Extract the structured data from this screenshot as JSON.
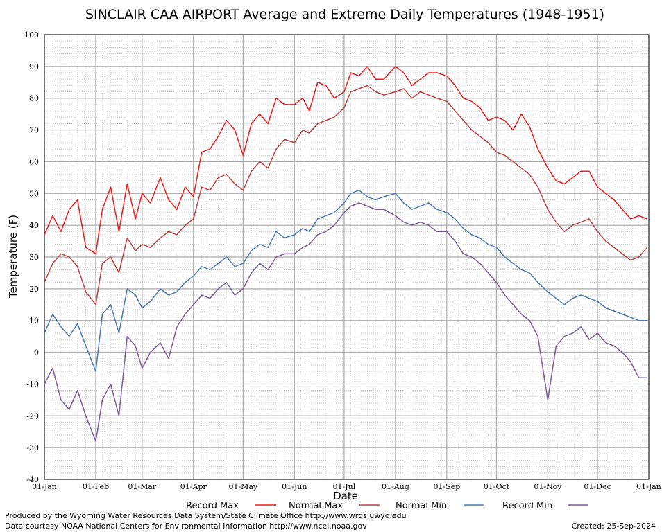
{
  "chart_data": {
    "type": "line",
    "title": "SINCLAIR CAA AIRPORT Average and Extreme Daily Temperatures (1948-1951)",
    "xlabel": "Date",
    "ylabel": "Temperature (F)",
    "ylim": [
      -40,
      100
    ],
    "yticks": [
      100,
      90,
      80,
      70,
      60,
      50,
      40,
      30,
      20,
      10,
      0,
      -10,
      -20,
      -30,
      -40
    ],
    "xlim": [
      0,
      365
    ],
    "x_ticks": [
      {
        "day": 0,
        "label": "01-Jan"
      },
      {
        "day": 31,
        "label": "01-Feb"
      },
      {
        "day": 59,
        "label": "01-Mar"
      },
      {
        "day": 90,
        "label": "01-Apr"
      },
      {
        "day": 120,
        "label": "01-May"
      },
      {
        "day": 151,
        "label": "01-Jun"
      },
      {
        "day": 181,
        "label": "01-Jul"
      },
      {
        "day": 212,
        "label": "01-Aug"
      },
      {
        "day": 243,
        "label": "01-Sep"
      },
      {
        "day": 273,
        "label": "01-Oct"
      },
      {
        "day": 304,
        "label": "01-Nov"
      },
      {
        "day": 334,
        "label": "01-Dec"
      },
      {
        "day": 365,
        "label": "01-Jan"
      }
    ],
    "grid": true,
    "legend_position": "bottom",
    "series": [
      {
        "name": "Record Max",
        "color": "#ee1c1c",
        "x": [
          0,
          5,
          10,
          15,
          20,
          25,
          31,
          35,
          40,
          45,
          50,
          55,
          59,
          64,
          70,
          75,
          80,
          85,
          90,
          95,
          100,
          105,
          110,
          115,
          120,
          125,
          130,
          135,
          140,
          145,
          151,
          156,
          160,
          165,
          170,
          175,
          181,
          185,
          190,
          195,
          200,
          205,
          212,
          217,
          222,
          227,
          232,
          237,
          243,
          248,
          253,
          258,
          263,
          268,
          273,
          278,
          283,
          288,
          293,
          298,
          304,
          309,
          314,
          319,
          324,
          329,
          334,
          339,
          344,
          349,
          354,
          359,
          364
        ],
        "y": [
          37,
          43,
          38,
          45,
          48,
          33,
          31,
          45,
          52,
          38,
          53,
          42,
          50,
          47,
          55,
          48,
          45,
          52,
          49,
          63,
          64,
          68,
          73,
          70,
          62,
          72,
          75,
          72,
          80,
          78,
          78,
          80,
          76,
          85,
          84,
          80,
          82,
          88,
          87,
          90,
          86,
          86,
          90,
          88,
          84,
          86,
          88,
          88,
          87,
          84,
          80,
          79,
          77,
          73,
          74,
          73,
          70,
          75,
          71,
          64,
          58,
          54,
          53,
          55,
          57,
          57,
          52,
          50,
          48,
          45,
          42,
          43,
          42
        ]
      },
      {
        "name": "Normal Max",
        "color": "#bd4040",
        "x": [
          0,
          5,
          10,
          15,
          20,
          25,
          31,
          35,
          40,
          45,
          50,
          55,
          59,
          64,
          70,
          75,
          80,
          85,
          90,
          95,
          100,
          105,
          110,
          115,
          120,
          125,
          130,
          135,
          140,
          145,
          151,
          156,
          160,
          165,
          170,
          175,
          181,
          185,
          190,
          195,
          200,
          205,
          212,
          217,
          222,
          227,
          232,
          237,
          243,
          248,
          253,
          258,
          263,
          268,
          273,
          278,
          283,
          288,
          293,
          298,
          304,
          309,
          314,
          319,
          324,
          329,
          334,
          339,
          344,
          349,
          354,
          359,
          364
        ],
        "y": [
          22,
          28,
          31,
          30,
          27,
          19,
          15,
          28,
          30,
          25,
          36,
          32,
          34,
          33,
          36,
          38,
          37,
          40,
          42,
          52,
          51,
          55,
          56,
          53,
          51,
          57,
          60,
          58,
          64,
          67,
          66,
          70,
          69,
          72,
          73,
          74,
          77,
          82,
          83,
          84,
          82,
          81,
          82,
          83,
          80,
          82,
          81,
          80,
          79,
          76,
          73,
          70,
          68,
          66,
          63,
          62,
          60,
          58,
          56,
          52,
          45,
          41,
          38,
          40,
          41,
          42,
          38,
          35,
          33,
          31,
          29,
          30,
          33
        ]
      },
      {
        "name": "Normal Min",
        "color": "#4a7ab5",
        "x": [
          0,
          5,
          10,
          15,
          20,
          25,
          31,
          35,
          40,
          45,
          50,
          55,
          59,
          64,
          70,
          75,
          80,
          85,
          90,
          95,
          100,
          105,
          110,
          115,
          120,
          125,
          130,
          135,
          140,
          145,
          151,
          156,
          160,
          165,
          170,
          175,
          181,
          185,
          190,
          195,
          200,
          205,
          212,
          217,
          222,
          227,
          232,
          237,
          243,
          248,
          253,
          258,
          263,
          268,
          273,
          278,
          283,
          288,
          293,
          298,
          304,
          309,
          314,
          319,
          324,
          329,
          334,
          339,
          344,
          349,
          354,
          359,
          364
        ],
        "y": [
          6,
          12,
          8,
          5,
          9,
          2,
          -6,
          12,
          15,
          6,
          20,
          18,
          14,
          16,
          20,
          18,
          19,
          22,
          24,
          27,
          26,
          28,
          30,
          27,
          28,
          32,
          34,
          33,
          38,
          36,
          37,
          39,
          38,
          42,
          43,
          44,
          47,
          50,
          51,
          49,
          48,
          49,
          50,
          47,
          45,
          46,
          47,
          45,
          44,
          42,
          39,
          37,
          36,
          34,
          33,
          30,
          28,
          26,
          25,
          22,
          19,
          17,
          15,
          17,
          18,
          17,
          16,
          14,
          13,
          12,
          11,
          10,
          10
        ]
      },
      {
        "name": "Record Min",
        "color": "#7a5a9a",
        "x": [
          0,
          5,
          10,
          15,
          20,
          25,
          31,
          35,
          40,
          45,
          50,
          55,
          59,
          64,
          70,
          75,
          80,
          85,
          90,
          95,
          100,
          105,
          110,
          115,
          120,
          125,
          130,
          135,
          140,
          145,
          151,
          156,
          160,
          165,
          170,
          175,
          181,
          185,
          190,
          195,
          200,
          205,
          212,
          217,
          222,
          227,
          232,
          237,
          243,
          248,
          253,
          258,
          263,
          268,
          273,
          278,
          283,
          288,
          293,
          298,
          304,
          309,
          314,
          319,
          324,
          329,
          334,
          339,
          344,
          349,
          354,
          359,
          364
        ],
        "y": [
          -10,
          -5,
          -15,
          -18,
          -12,
          -20,
          -28,
          -15,
          -10,
          -20,
          5,
          2,
          -5,
          0,
          3,
          -2,
          8,
          12,
          15,
          18,
          17,
          20,
          22,
          18,
          20,
          25,
          28,
          26,
          30,
          31,
          31,
          33,
          34,
          37,
          38,
          40,
          44,
          46,
          47,
          46,
          45,
          45,
          43,
          41,
          40,
          41,
          40,
          38,
          38,
          35,
          31,
          30,
          28,
          25,
          22,
          18,
          15,
          12,
          10,
          5,
          -15,
          2,
          5,
          6,
          8,
          4,
          6,
          3,
          2,
          0,
          -3,
          -8,
          -8
        ]
      }
    ]
  },
  "legend": [
    {
      "label": "Record Max",
      "color": "#ee1c1c"
    },
    {
      "label": "Normal Max",
      "color": "#bd4040"
    },
    {
      "label": "Normal Min",
      "color": "#4a7ab5"
    },
    {
      "label": "Record Min",
      "color": "#7a5a9a"
    }
  ],
  "footer": {
    "produced_by": "Produced by the Wyoming Water Resources Data System/State Climate Office http://www.wrds.uwyo.edu",
    "courtesy": "Data courtesy NOAA National Centers for Environmental Information http://www.ncei.noaa.gov",
    "created": "Created:  25-Sep-2024"
  }
}
